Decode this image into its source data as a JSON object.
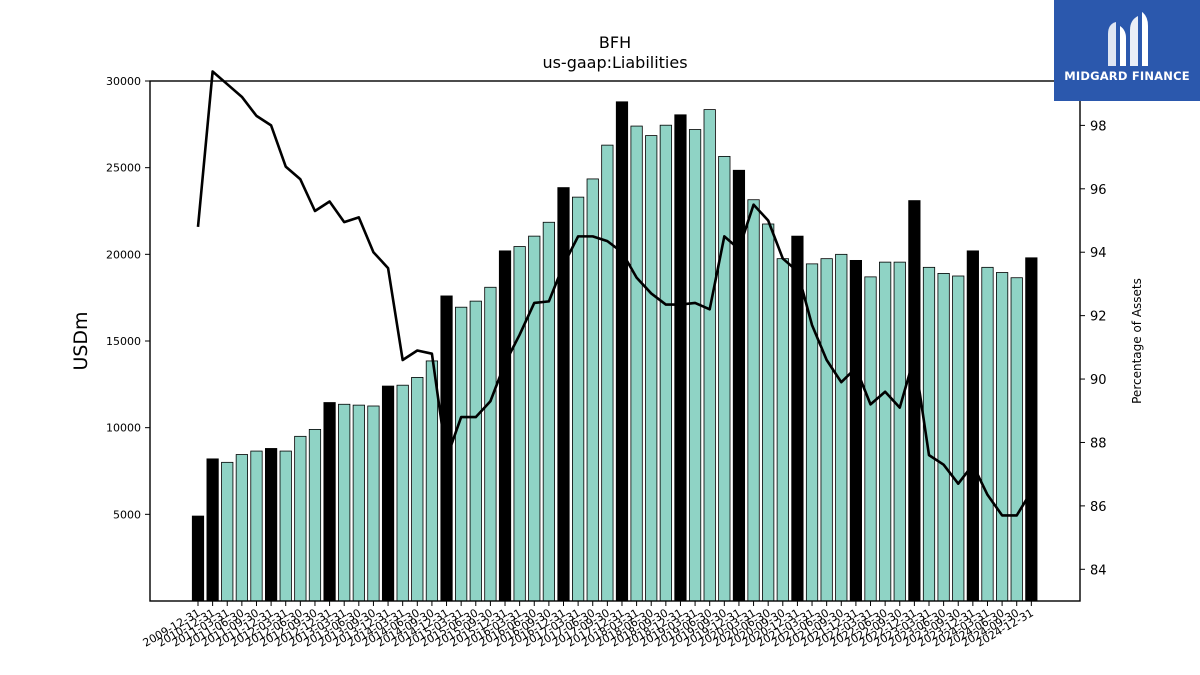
{
  "chart_data": {
    "type": "bar",
    "title": "BFH",
    "subtitle": "us-gaap:Liabilities",
    "ylabel": "USDm",
    "y2label": "Percentage of Assets",
    "ylim": [
      0,
      30000
    ],
    "y2lim": [
      83,
      99.4
    ],
    "yticks": [
      5000,
      10000,
      15000,
      20000,
      25000,
      30000
    ],
    "y2ticks": [
      84,
      86,
      88,
      90,
      92,
      94,
      96,
      98
    ],
    "colors": {
      "annual_bar": "#000000",
      "quarter_bar": "#8fd3c5",
      "line": "#000000"
    },
    "categories": [
      "2009-12-31",
      "2010-12-31",
      "2011-03-31",
      "2011-06-30",
      "2011-09-30",
      "2011-12-31",
      "2012-03-31",
      "2012-06-30",
      "2012-09-30",
      "2012-12-31",
      "2013-03-31",
      "2013-06-30",
      "2013-09-30",
      "2013-12-31",
      "2014-03-31",
      "2014-06-30",
      "2014-09-30",
      "2014-12-31",
      "2015-03-31",
      "2015-06-30",
      "2015-09-30",
      "2015-12-31",
      "2016-03-31",
      "2016-06-30",
      "2016-09-30",
      "2016-12-31",
      "2017-03-31",
      "2017-06-30",
      "2017-09-30",
      "2017-12-31",
      "2018-03-31",
      "2018-06-30",
      "2018-09-30",
      "2018-12-31",
      "2019-03-31",
      "2019-06-30",
      "2019-09-30",
      "2019-12-31",
      "2020-03-31",
      "2020-06-30",
      "2020-09-30",
      "2020-12-31",
      "2021-03-31",
      "2021-06-30",
      "2021-09-30",
      "2021-12-31",
      "2022-03-31",
      "2022-06-30",
      "2022-09-30",
      "2022-12-31",
      "2023-03-31",
      "2023-06-30",
      "2023-09-30",
      "2023-12-31",
      "2024-03-31",
      "2024-06-30",
      "2024-09-30",
      "2024-12-31"
    ],
    "series": [
      {
        "kind": "bar",
        "values": [
          4900,
          8200,
          8000,
          8450,
          8650,
          8800,
          8650,
          9500,
          9900,
          11450,
          11350,
          11300,
          11250,
          12400,
          12450,
          12900,
          13850,
          17600,
          16950,
          17300,
          18100,
          20200,
          20450,
          21050,
          21850,
          23850,
          23300,
          24350,
          26300,
          28800,
          27400,
          26850,
          27450,
          28050,
          27200,
          28350,
          25650,
          24850,
          23150,
          21750,
          19750,
          21050,
          19450,
          19750,
          20000,
          19650,
          18700,
          19550,
          19550,
          23100,
          19250,
          18900,
          18750,
          20200,
          19250,
          18950,
          18650,
          19800
        ],
        "annual": [
          true,
          true,
          false,
          false,
          false,
          true,
          false,
          false,
          false,
          true,
          false,
          false,
          false,
          true,
          false,
          false,
          false,
          true,
          false,
          false,
          false,
          true,
          false,
          false,
          false,
          true,
          false,
          false,
          false,
          true,
          false,
          false,
          false,
          true,
          false,
          false,
          false,
          true,
          false,
          false,
          false,
          true,
          false,
          false,
          false,
          true,
          false,
          false,
          false,
          true,
          false,
          false,
          false,
          true,
          false,
          false,
          false,
          true
        ]
      },
      {
        "kind": "line",
        "values": [
          94.8,
          99.7,
          99.3,
          98.9,
          98.3,
          98.0,
          96.7,
          96.3,
          95.3,
          95.6,
          94.95,
          95.1,
          94.0,
          93.5,
          90.6,
          90.9,
          90.8,
          87.5,
          88.8,
          88.8,
          89.3,
          90.5,
          91.4,
          92.4,
          92.45,
          93.6,
          94.5,
          94.5,
          94.35,
          94.0,
          93.2,
          92.7,
          92.35,
          92.35,
          92.4,
          92.2,
          94.5,
          94.1,
          95.5,
          95.0,
          93.8,
          93.4,
          91.7,
          90.6,
          89.9,
          90.35,
          89.2,
          89.6,
          89.1,
          90.7,
          87.6,
          87.3,
          86.7,
          87.3,
          86.35,
          85.7,
          85.7,
          86.45
        ]
      }
    ]
  },
  "logo": {
    "text": "MIDGARD FINANCE"
  }
}
